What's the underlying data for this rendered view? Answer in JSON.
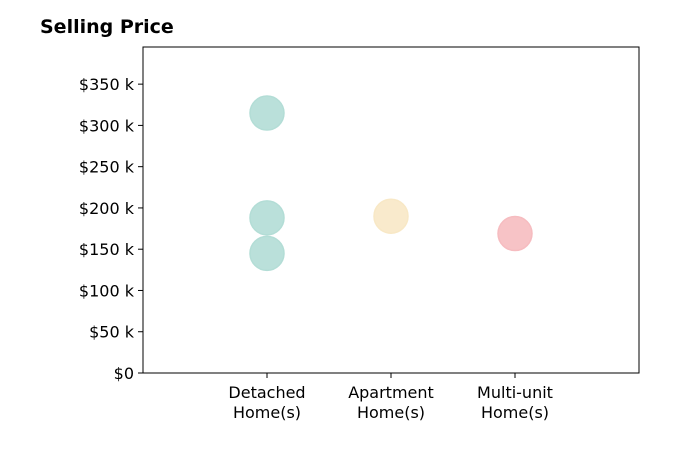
{
  "chart_data": {
    "type": "scatter",
    "title": "Selling Price",
    "xlabel": "",
    "ylabel": "",
    "categories": [
      [
        "Detached",
        "Home(s)"
      ],
      [
        "Apartment",
        "Home(s)"
      ],
      [
        "Multi-unit",
        "Home(s)"
      ]
    ],
    "yticks": [
      0,
      50,
      100,
      150,
      200,
      250,
      300,
      350
    ],
    "ytick_labels": [
      "$0",
      "$50 k",
      "$100 k",
      "$150 k",
      "$200 k",
      "$250 k",
      "$300 k",
      "$350 k"
    ],
    "ylim": [
      0,
      395
    ],
    "grid": false,
    "points": [
      {
        "category": 0,
        "y": 315,
        "color": "#b3ddd6"
      },
      {
        "category": 0,
        "y": 188,
        "color": "#b3ddd6"
      },
      {
        "category": 0,
        "y": 145,
        "color": "#b3ddd6"
      },
      {
        "category": 1,
        "y": 190,
        "color": "#f8e8c6"
      },
      {
        "category": 2,
        "y": 169,
        "color": "#f6bcc0"
      }
    ]
  }
}
